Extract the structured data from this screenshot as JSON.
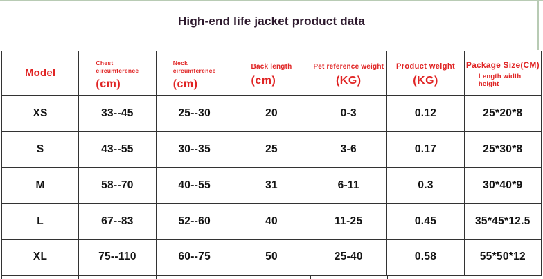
{
  "page": {
    "title": "High-end life jacket product data"
  },
  "chart_data": {
    "type": "table",
    "title": "High-end life jacket product data",
    "columns": [
      {
        "id": "model",
        "label_lines": [
          "Model"
        ],
        "unit": "",
        "sub": ""
      },
      {
        "id": "chest_circumference",
        "label_lines": [
          "Chest",
          "circumference"
        ],
        "unit": "(cm)",
        "sub": ""
      },
      {
        "id": "neck_circumference",
        "label_lines": [
          "Neck",
          "circumference"
        ],
        "unit": "(cm)",
        "sub": ""
      },
      {
        "id": "back_length",
        "label_lines": [
          "Back length"
        ],
        "unit": "(cm)",
        "sub": ""
      },
      {
        "id": "pet_reference_weight",
        "label_lines": [
          "Pet reference weight"
        ],
        "unit": "(KG)",
        "sub": ""
      },
      {
        "id": "product_weight",
        "label_lines": [
          "Product weight"
        ],
        "unit": "(KG)",
        "sub": ""
      },
      {
        "id": "package_size",
        "label_lines": [
          "Package Size(CM)"
        ],
        "unit": "",
        "sub": "Length width height"
      }
    ],
    "rows": [
      [
        "XS",
        "33--45",
        "25--30",
        "20",
        "0-3",
        "0.12",
        "25*20*8"
      ],
      [
        "S",
        "43--55",
        "30--35",
        "25",
        "3-6",
        "0.17",
        "25*30*8"
      ],
      [
        "M",
        "58--70",
        "40--55",
        "31",
        "6-11",
        "0.3",
        "30*40*9"
      ],
      [
        "L",
        "67--83",
        "52--60",
        "40",
        "11-25",
        "0.45",
        "35*45*12.5"
      ],
      [
        "XL",
        "75--110",
        "60--75",
        "50",
        "25-40",
        "0.58",
        "55*50*12"
      ]
    ]
  },
  "colors": {
    "header_text": "#e02424",
    "title_text": "#2d192d",
    "body_text": "#141414",
    "table_border": "#333333",
    "edge_accent": "#b8cbb4",
    "background": "#ffffff"
  }
}
